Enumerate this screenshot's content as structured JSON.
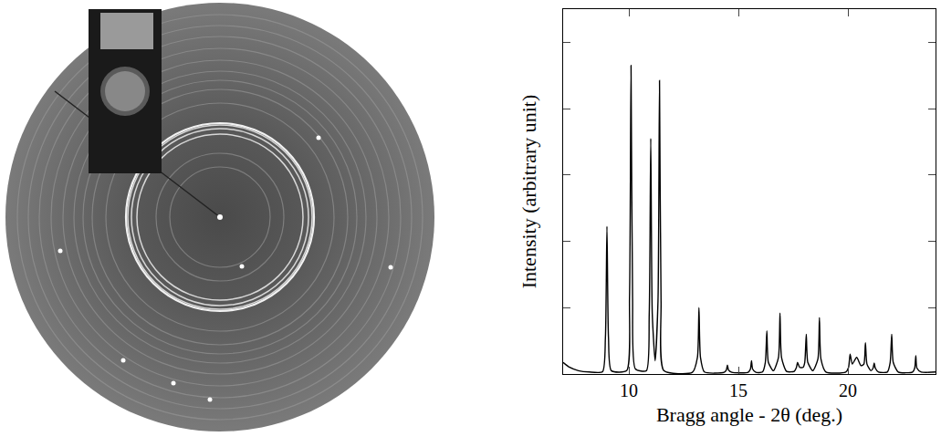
{
  "chart_data": {
    "type": "line",
    "x_label": "Bragg angle - 2θ (deg.)",
    "y_label": "Intensity (arbitrary unit)",
    "x": [
      7.0,
      7.3,
      7.7,
      8.2,
      8.8,
      8.93,
      9.0,
      9.07,
      9.2,
      9.9,
      10.03,
      10.1,
      10.17,
      10.3,
      10.8,
      10.93,
      11.0,
      11.07,
      11.2,
      11.33,
      11.4,
      11.47,
      11.6,
      12.9,
      13.13,
      13.2,
      13.27,
      13.45,
      14.35,
      14.45,
      14.5,
      14.55,
      14.7,
      15.45,
      15.55,
      15.6,
      15.65,
      15.8,
      16.1,
      16.23,
      16.3,
      16.37,
      16.6,
      16.83,
      16.9,
      16.97,
      17.2,
      17.55,
      17.65,
      17.7,
      17.8,
      17.95,
      18.03,
      18.1,
      18.17,
      18.4,
      18.63,
      18.7,
      18.77,
      19.0,
      19.9,
      20.03,
      20.1,
      20.2,
      20.4,
      20.6,
      20.73,
      20.8,
      20.87,
      21.05,
      21.15,
      21.2,
      21.25,
      21.4,
      21.8,
      21.93,
      22.0,
      22.07,
      22.3,
      22.95,
      23.05,
      23.1,
      23.15,
      23.35,
      24.0
    ],
    "values": [
      3.5,
      2.0,
      1.0,
      0.6,
      0.7,
      11,
      44.5,
      11,
      1.0,
      1.0,
      23,
      93,
      23,
      1.5,
      1.0,
      18,
      71,
      18,
      4,
      22,
      88.5,
      22,
      1.0,
      0.5,
      5,
      20,
      5,
      0.6,
      0.5,
      1.2,
      2.7,
      1.2,
      0.5,
      0.5,
      1.5,
      4,
      1.5,
      0.5,
      0.6,
      3.5,
      13,
      3.5,
      1.0,
      5,
      18.4,
      5,
      0.8,
      0.8,
      2,
      3.5,
      2,
      2,
      3.5,
      12,
      3.5,
      1,
      4.5,
      17,
      4.5,
      0.6,
      0.6,
      2,
      6,
      3,
      5,
      2.5,
      3,
      9.4,
      3,
      1,
      1.8,
      3.3,
      1.8,
      0.6,
      0.6,
      3.5,
      12,
      3.5,
      0.6,
      0.6,
      1.8,
      5.5,
      1.8,
      0.6,
      0.6
    ],
    "color": "#000000",
    "xlim": [
      7,
      24
    ],
    "xticks": [
      10,
      15,
      20
    ],
    "ylim": [
      0,
      110
    ],
    "yticks": [
      0,
      20,
      40,
      60,
      80,
      100
    ],
    "tick_labels": "x",
    "grid": false
  }
}
